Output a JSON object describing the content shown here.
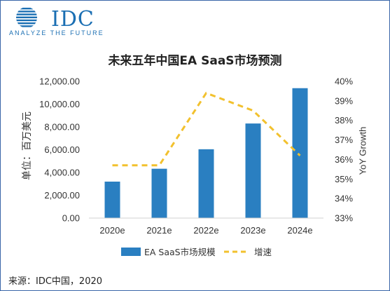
{
  "brand": {
    "logo_text": "IDC",
    "tagline": "ANALYZE THE FUTURE",
    "color": "#1b6fb3"
  },
  "chart_data": {
    "type": "bar",
    "title": "未来五年中国EA SaaS市场预测",
    "categories": [
      "2020e",
      "2021e",
      "2022e",
      "2023e",
      "2024e"
    ],
    "ylabel": "单位：百万美元",
    "y2label": "YoY Growth",
    "ylim": [
      0,
      12000
    ],
    "y2lim": [
      33,
      40
    ],
    "y_ticks": [
      "0.00",
      "2,000.00",
      "4,000.00",
      "6,000.00",
      "8,000.00",
      "10,000.00",
      "12,000.00"
    ],
    "y2_ticks": [
      "33%",
      "34%",
      "35%",
      "36%",
      "37%",
      "38%",
      "39%",
      "40%"
    ],
    "series": [
      {
        "name": "EA SaaS市场规模",
        "kind": "bar",
        "axis": "left",
        "color": "#2a7fc1",
        "values": [
          3200,
          4330,
          6040,
          8300,
          11400
        ]
      },
      {
        "name": "增速",
        "kind": "line",
        "axis": "right",
        "style": "dashed",
        "color": "#f2c12e",
        "values": [
          35.7,
          35.7,
          39.4,
          38.5,
          36.2
        ]
      }
    ],
    "legend": "bottom",
    "grid": false
  },
  "footer": {
    "source": "来源：IDC中国，2020"
  }
}
